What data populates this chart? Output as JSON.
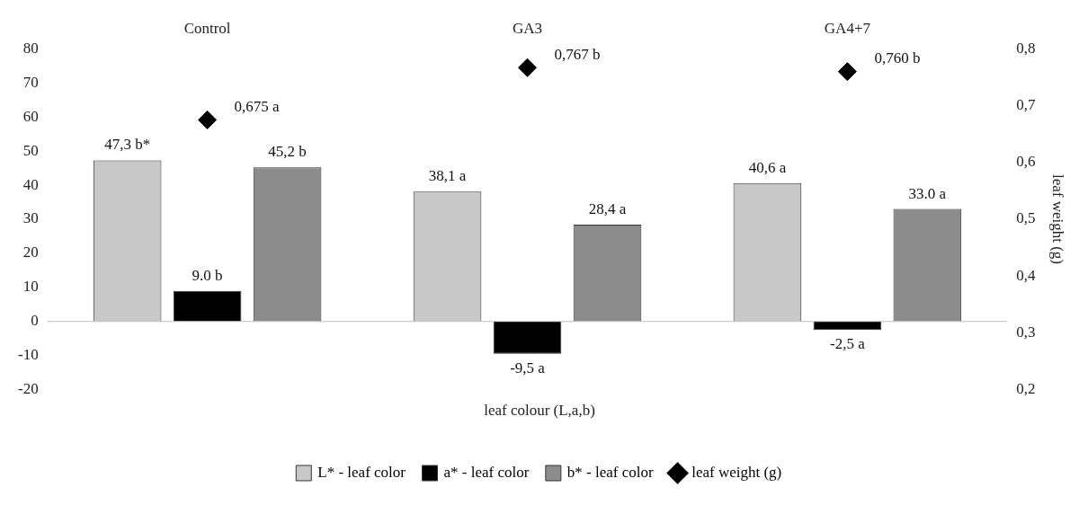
{
  "chart_data": {
    "type": "bar",
    "xlabel": "leaf colour (L,a,b)",
    "y2label": "leaf weight (g)",
    "categories": [
      "Control",
      "GA3",
      "GA4+7"
    ],
    "series": [
      {
        "name": "L* - leaf color",
        "color": "#c8c8c8",
        "values": [
          47.3,
          38.1,
          40.6
        ],
        "value_labels": [
          "47,3 b*",
          "38,1 a",
          "40,6 a"
        ]
      },
      {
        "name": "a* - leaf color",
        "color": "#000000",
        "values": [
          9.0,
          -9.5,
          -2.5
        ],
        "value_labels": [
          "9.0 b",
          "-9,5 a",
          "-2,5 a"
        ]
      },
      {
        "name": "b* - leaf color",
        "color": "#8c8c8c",
        "values": [
          45.2,
          28.4,
          33.0
        ],
        "value_labels": [
          "45,2 b",
          "28,4 a",
          "33.0 a"
        ]
      },
      {
        "name": "leaf weight (g)",
        "type": "scatter",
        "axis": "y2",
        "marker": "diamond",
        "color": "#000000",
        "values": [
          0.675,
          0.767,
          0.76
        ],
        "value_labels": [
          "0,675 a",
          "0,767 b",
          "0,760 b"
        ]
      }
    ],
    "ylim": [
      -20,
      80
    ],
    "yticks": [
      -20,
      -10,
      0,
      10,
      20,
      30,
      40,
      50,
      60,
      70,
      80
    ],
    "y2lim": [
      0.2,
      0.8
    ],
    "y2ticks": [
      {
        "value": 0.2,
        "label": "0,2"
      },
      {
        "value": 0.3,
        "label": "0,3"
      },
      {
        "value": 0.4,
        "label": "0,4"
      },
      {
        "value": 0.5,
        "label": "0,5"
      },
      {
        "value": 0.6,
        "label": "0,6"
      },
      {
        "value": 0.7,
        "label": "0,7"
      },
      {
        "value": 0.8,
        "label": "0,8"
      }
    ],
    "ref_lines": [
      {
        "axis": "y",
        "value": 0,
        "color": "#bfbfbf"
      }
    ],
    "grid": false,
    "legend": "bottom"
  }
}
